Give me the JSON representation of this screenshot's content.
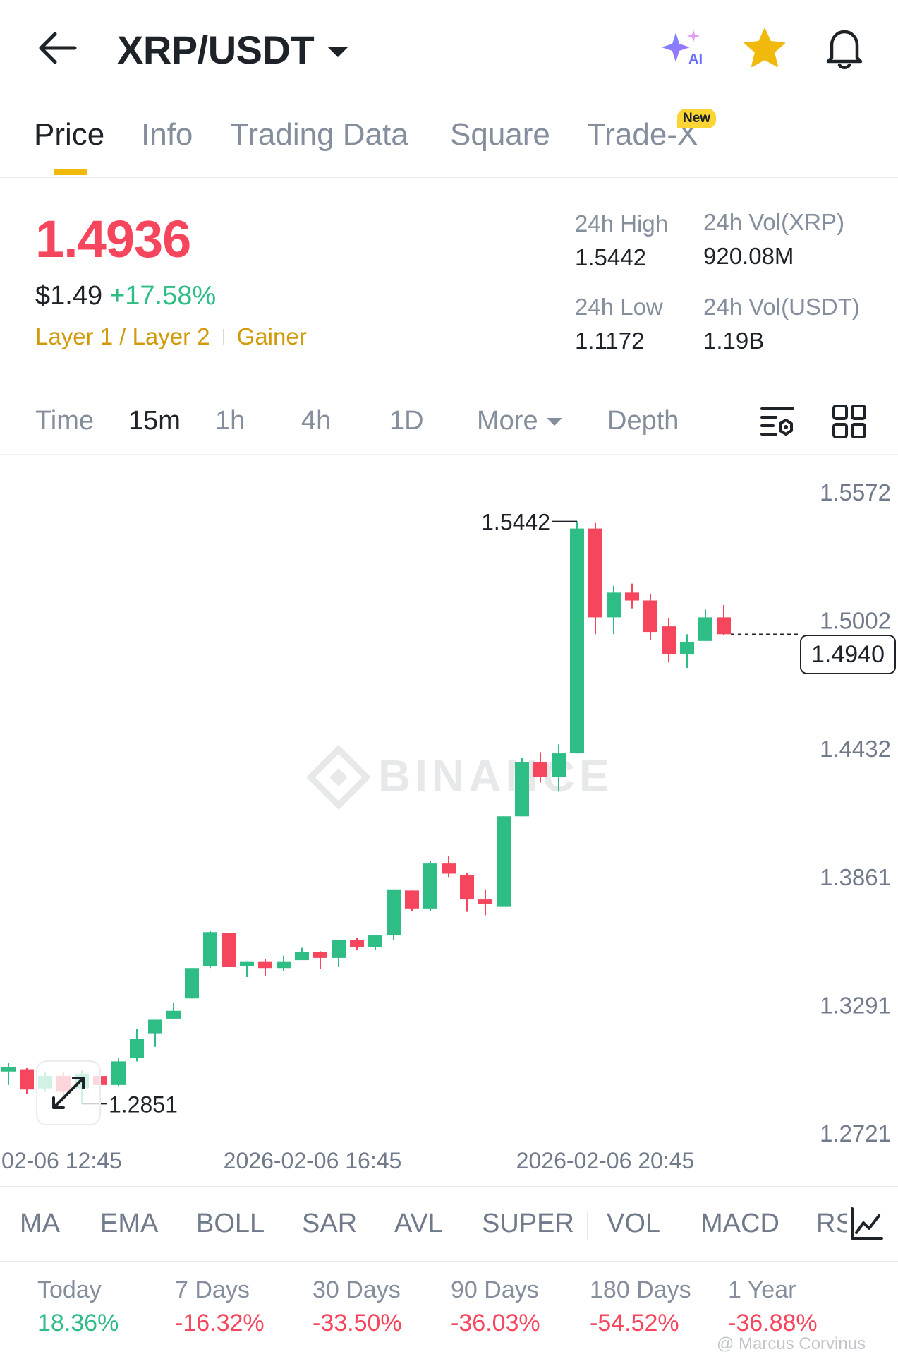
{
  "header": {
    "pair": "XRP/USDT",
    "ai_badge": "AI"
  },
  "tabs": [
    {
      "label": "Price",
      "active": true
    },
    {
      "label": "Info",
      "active": false
    },
    {
      "label": "Trading Data",
      "active": false
    },
    {
      "label": "Square",
      "active": false
    },
    {
      "label": "Trade-X",
      "active": false,
      "badge": "New"
    }
  ],
  "ticker": {
    "last_price": "1.4936",
    "usd_price": "$1.49",
    "change_pct": "+17.58%",
    "tags": [
      "Layer 1 / Layer 2",
      "Gainer"
    ],
    "high_label": "24h High",
    "high": "1.5442",
    "low_label": "24h Low",
    "low": "1.1172",
    "vol_base_label": "24h Vol(XRP)",
    "vol_base": "920.08M",
    "vol_quote_label": "24h Vol(USDT)",
    "vol_quote": "1.19B"
  },
  "intervals": {
    "items": [
      {
        "label": "Time",
        "active": false
      },
      {
        "label": "15m",
        "active": true
      },
      {
        "label": "1h",
        "active": false
      },
      {
        "label": "4h",
        "active": false
      },
      {
        "label": "1D",
        "active": false
      },
      {
        "label": "More",
        "active": false
      },
      {
        "label": "Depth",
        "active": false
      }
    ]
  },
  "chart_data": {
    "type": "candlestick",
    "interval": "15m",
    "watermark": "BINANCE",
    "y_ticks": [
      "1.5572",
      "1.5002",
      "1.4432",
      "1.3861",
      "1.3291",
      "1.2721"
    ],
    "ylim": [
      1.2721,
      1.5572
    ],
    "x_ticks": [
      "2026-02-06 12:45",
      "2026-02-06 16:45",
      "2026-02-06 20:45"
    ],
    "high_label": "1.5442",
    "low_label": "1.2851",
    "current_price": "1.4940",
    "candles": [
      {
        "o": 1.2995,
        "h": 1.3035,
        "l": 1.2935,
        "c": 1.3015
      },
      {
        "o": 1.3005,
        "h": 1.301,
        "l": 1.2895,
        "c": 1.2915
      },
      {
        "o": 1.292,
        "h": 1.299,
        "l": 1.2905,
        "c": 1.2975
      },
      {
        "o": 1.2975,
        "h": 1.299,
        "l": 1.2885,
        "c": 1.2905
      },
      {
        "o": 1.292,
        "h": 1.3,
        "l": 1.2851,
        "c": 1.2985
      },
      {
        "o": 1.2975,
        "h": 1.2985,
        "l": 1.292,
        "c": 1.2935
      },
      {
        "o": 1.2935,
        "h": 1.3055,
        "l": 1.293,
        "c": 1.304
      },
      {
        "o": 1.3055,
        "h": 1.3185,
        "l": 1.304,
        "c": 1.314
      },
      {
        "o": 1.3165,
        "h": 1.3225,
        "l": 1.3105,
        "c": 1.3225
      },
      {
        "o": 1.323,
        "h": 1.33,
        "l": 1.323,
        "c": 1.3265
      },
      {
        "o": 1.332,
        "h": 1.3455,
        "l": 1.332,
        "c": 1.3455
      },
      {
        "o": 1.3465,
        "h": 1.362,
        "l": 1.3455,
        "c": 1.3615
      },
      {
        "o": 1.361,
        "h": 1.361,
        "l": 1.346,
        "c": 1.346
      },
      {
        "o": 1.3465,
        "h": 1.3485,
        "l": 1.3415,
        "c": 1.3485
      },
      {
        "o": 1.3485,
        "h": 1.3495,
        "l": 1.342,
        "c": 1.3455
      },
      {
        "o": 1.3455,
        "h": 1.351,
        "l": 1.344,
        "c": 1.3485
      },
      {
        "o": 1.349,
        "h": 1.3545,
        "l": 1.349,
        "c": 1.3525
      },
      {
        "o": 1.3525,
        "h": 1.353,
        "l": 1.345,
        "c": 1.35
      },
      {
        "o": 1.35,
        "h": 1.358,
        "l": 1.346,
        "c": 1.358
      },
      {
        "o": 1.358,
        "h": 1.359,
        "l": 1.3535,
        "c": 1.355
      },
      {
        "o": 1.355,
        "h": 1.36,
        "l": 1.3535,
        "c": 1.36
      },
      {
        "o": 1.36,
        "h": 1.3805,
        "l": 1.358,
        "c": 1.3805
      },
      {
        "o": 1.38,
        "h": 1.38,
        "l": 1.371,
        "c": 1.372
      },
      {
        "o": 1.372,
        "h": 1.393,
        "l": 1.371,
        "c": 1.392
      },
      {
        "o": 1.392,
        "h": 1.3955,
        "l": 1.386,
        "c": 1.3875
      },
      {
        "o": 1.387,
        "h": 1.388,
        "l": 1.3705,
        "c": 1.376
      },
      {
        "o": 1.376,
        "h": 1.3805,
        "l": 1.369,
        "c": 1.374
      },
      {
        "o": 1.373,
        "h": 1.413,
        "l": 1.373,
        "c": 1.413
      },
      {
        "o": 1.413,
        "h": 1.439,
        "l": 1.413,
        "c": 1.437
      },
      {
        "o": 1.437,
        "h": 1.4415,
        "l": 1.428,
        "c": 1.4305
      },
      {
        "o": 1.4305,
        "h": 1.445,
        "l": 1.424,
        "c": 1.441
      },
      {
        "o": 1.441,
        "h": 1.5442,
        "l": 1.441,
        "c": 1.541
      },
      {
        "o": 1.541,
        "h": 1.5435,
        "l": 1.494,
        "c": 1.5015
      },
      {
        "o": 1.5015,
        "h": 1.5155,
        "l": 1.494,
        "c": 1.5125
      },
      {
        "o": 1.5125,
        "h": 1.5165,
        "l": 1.5055,
        "c": 1.509
      },
      {
        "o": 1.509,
        "h": 1.512,
        "l": 1.4915,
        "c": 1.495
      },
      {
        "o": 1.4975,
        "h": 1.501,
        "l": 1.4815,
        "c": 1.485
      },
      {
        "o": 1.485,
        "h": 1.494,
        "l": 1.479,
        "c": 1.4905
      },
      {
        "o": 1.491,
        "h": 1.505,
        "l": 1.491,
        "c": 1.5015
      },
      {
        "o": 1.5015,
        "h": 1.507,
        "l": 1.4935,
        "c": 1.494
      }
    ]
  },
  "indicators": [
    "MA",
    "EMA",
    "BOLL",
    "SAR",
    "AVL",
    "SUPER",
    "VOL",
    "MACD",
    "RS"
  ],
  "performance": [
    {
      "label": "Today",
      "value": "18.36%",
      "direction": "up"
    },
    {
      "label": "7 Days",
      "value": "-16.32%",
      "direction": "down"
    },
    {
      "label": "30 Days",
      "value": "-33.50%",
      "direction": "down"
    },
    {
      "label": "90 Days",
      "value": "-36.03%",
      "direction": "down"
    },
    {
      "label": "180 Days",
      "value": "-54.52%",
      "direction": "down"
    },
    {
      "label": "1 Year",
      "value": "-36.88%",
      "direction": "down"
    }
  ],
  "credit": "@ Marcus Corvinus",
  "colors": {
    "up": "#2ebd85",
    "down": "#f6465d",
    "accent": "#f0b90b"
  }
}
